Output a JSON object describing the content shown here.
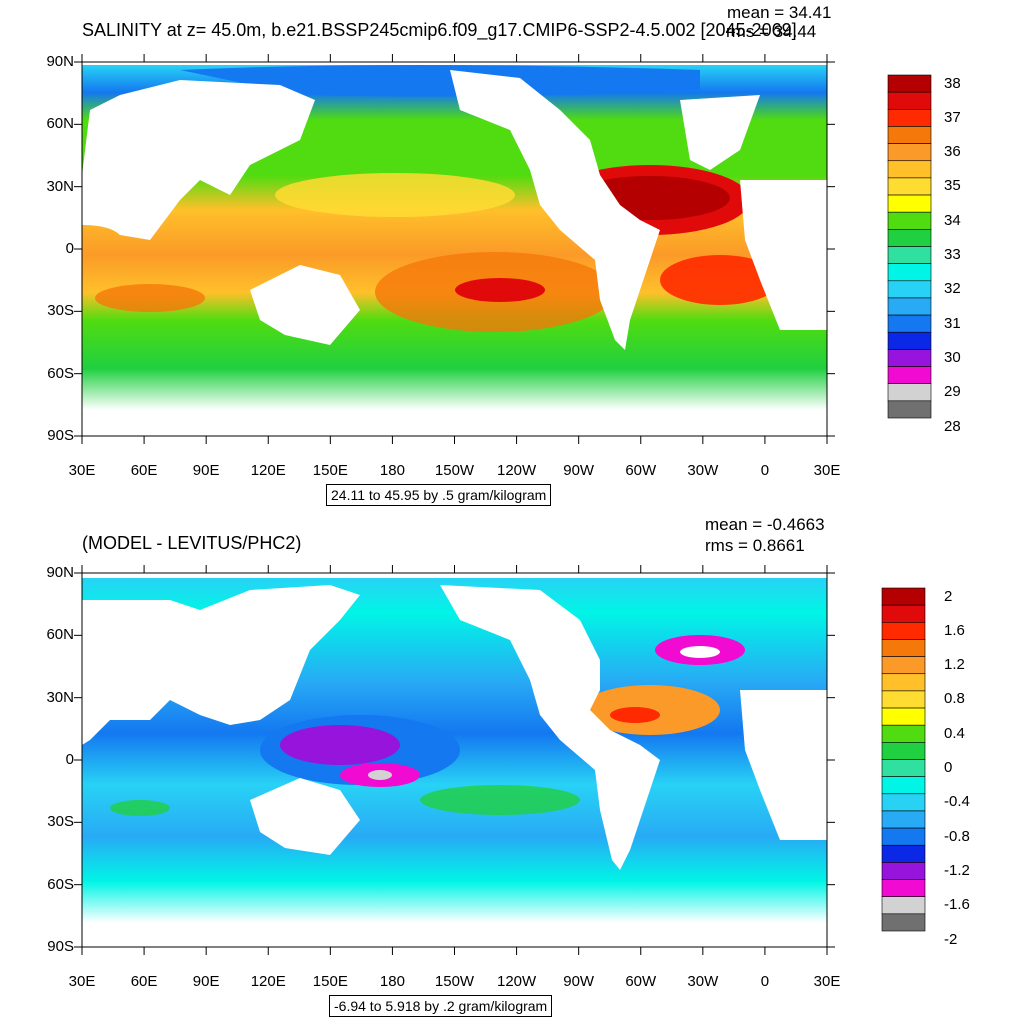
{
  "panels": [
    {
      "title": "SALINITY at z=  45.0m, b.e21.BSSP245cmip6.f09_g17.CMIP6-SSP2-4.5.002 [2045-2069]",
      "mean": "mean = 34.41",
      "rms": "rms = 34.44",
      "range": "24.11 to 45.95 by .5 gram/kilogram",
      "colorbar": {
        "labels": [
          "38",
          "37",
          "36",
          "35",
          "34",
          "33",
          "32",
          "31",
          "30",
          "29",
          "28"
        ],
        "colors": [
          "#b40000",
          "#e10a0a",
          "#ff2a00",
          "#f5780a",
          "#fb9a28",
          "#ffc02a",
          "#ffdc32",
          "#ffff00",
          "#50dc10",
          "#20d040",
          "#30e0a0",
          "#00f5e6",
          "#28d2f5",
          "#28aaf5",
          "#1478f0",
          "#0a28e6",
          "#9614dc",
          "#f00ad2",
          "#d2d2d2",
          "#707070"
        ]
      }
    },
    {
      "title": "(MODEL - LEVITUS/PHC2)",
      "mean": "mean = -0.4663",
      "rms": "rms = 0.8661",
      "range": "-6.94 to 5.918 by .2 gram/kilogram",
      "colorbar": {
        "labels": [
          "2",
          "1.6",
          "1.2",
          "0.8",
          "0.4",
          "0",
          "-0.4",
          "-0.8",
          "-1.2",
          "-1.6",
          "-2"
        ],
        "colors": [
          "#b40000",
          "#e10a0a",
          "#ff2a00",
          "#f5780a",
          "#fb9a28",
          "#ffc02a",
          "#ffdc32",
          "#ffff00",
          "#50dc10",
          "#20d040",
          "#30e0a0",
          "#00f5e6",
          "#28d2f5",
          "#28aaf5",
          "#1478f0",
          "#0a28e6",
          "#9614dc",
          "#f00ad2",
          "#d2d2d2",
          "#707070"
        ]
      }
    }
  ],
  "lat_labels": [
    "90N",
    "60N",
    "30N",
    "0",
    "30S",
    "60S",
    "90S"
  ],
  "lon_labels": [
    "30E",
    "60E",
    "90E",
    "120E",
    "150E",
    "180",
    "150W",
    "120W",
    "90W",
    "60W",
    "30W",
    "0",
    "30E"
  ]
}
